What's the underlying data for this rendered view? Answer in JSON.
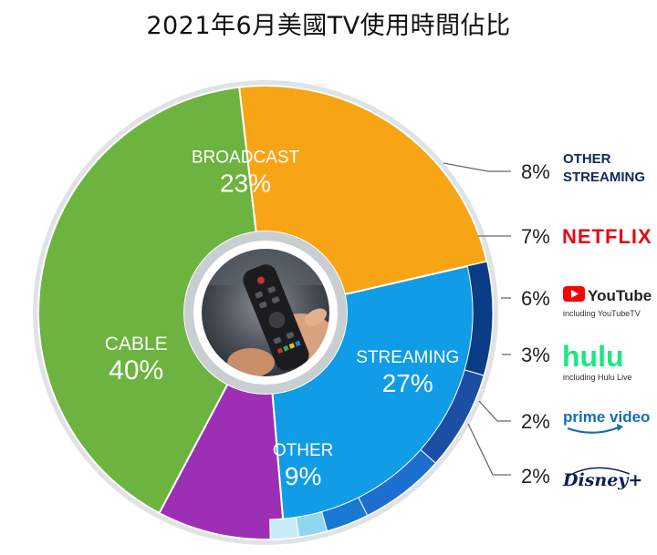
{
  "title": "2021年6月美國TV使用時間佔比",
  "colors": {
    "cable": "#6db33f",
    "broadcast": "#f7a415",
    "streaming": "#109ce6",
    "other": "#9d2fb4",
    "ring": "#dfe3e6",
    "other_streaming": "#0b3c86",
    "netflix": "#1c4fa3",
    "youtube": "#1e6ed0",
    "hulu": "#1878d2",
    "prime": "#8fd6ef",
    "disney": "#c8ecf7",
    "netflix_brand": "#e50914",
    "youtube_brand": "#ff0000",
    "hulu_brand": "#1ce783",
    "prime_brand": "#146eb4",
    "disney_brand": "#0a1f5c",
    "dark_text": "#0d2b5e"
  },
  "chart_data": {
    "type": "pie",
    "title": "2021年6月美國TV使用時間佔比",
    "slices": [
      {
        "key": "streaming",
        "name": "STREAMING",
        "value": 27,
        "label": "27%"
      },
      {
        "key": "other",
        "name": "OTHER",
        "value": 9,
        "label": "9%"
      },
      {
        "key": "cable",
        "name": "CABLE",
        "value": 40,
        "label": "40%"
      },
      {
        "key": "broadcast",
        "name": "BROADCAST",
        "value": 23,
        "label": "23%"
      }
    ],
    "streaming_breakdown": [
      {
        "key": "other_streaming",
        "name": "OTHER STREAMING",
        "value": 8,
        "label": "8%"
      },
      {
        "key": "netflix",
        "name": "NETFLIX",
        "value": 7,
        "label": "7%"
      },
      {
        "key": "youtube",
        "name": "YouTube",
        "sub": "including YouTubeTV",
        "value": 6,
        "label": "6%"
      },
      {
        "key": "hulu",
        "name": "hulu",
        "sub": "including Hulu Live",
        "value": 3,
        "label": "3%"
      },
      {
        "key": "prime",
        "name": "prime video",
        "value": 2,
        "label": "2%"
      },
      {
        "key": "disney",
        "name": "Disney+",
        "value": 2,
        "label": "2%"
      }
    ]
  },
  "legend": {
    "other_streaming": {
      "pct": "8%",
      "line1": "OTHER",
      "line2": "STREAMING"
    },
    "netflix": {
      "pct": "7%",
      "name": "NETFLIX"
    },
    "youtube": {
      "pct": "6%",
      "name": "YouTube",
      "sub": "including YouTubeTV"
    },
    "hulu": {
      "pct": "3%",
      "name": "hulu",
      "sub": "including Hulu Live"
    },
    "prime": {
      "pct": "2%",
      "name": "prime video"
    },
    "disney": {
      "pct": "2%",
      "name": "Disney+"
    }
  },
  "center_image": "tv-remote-photo"
}
